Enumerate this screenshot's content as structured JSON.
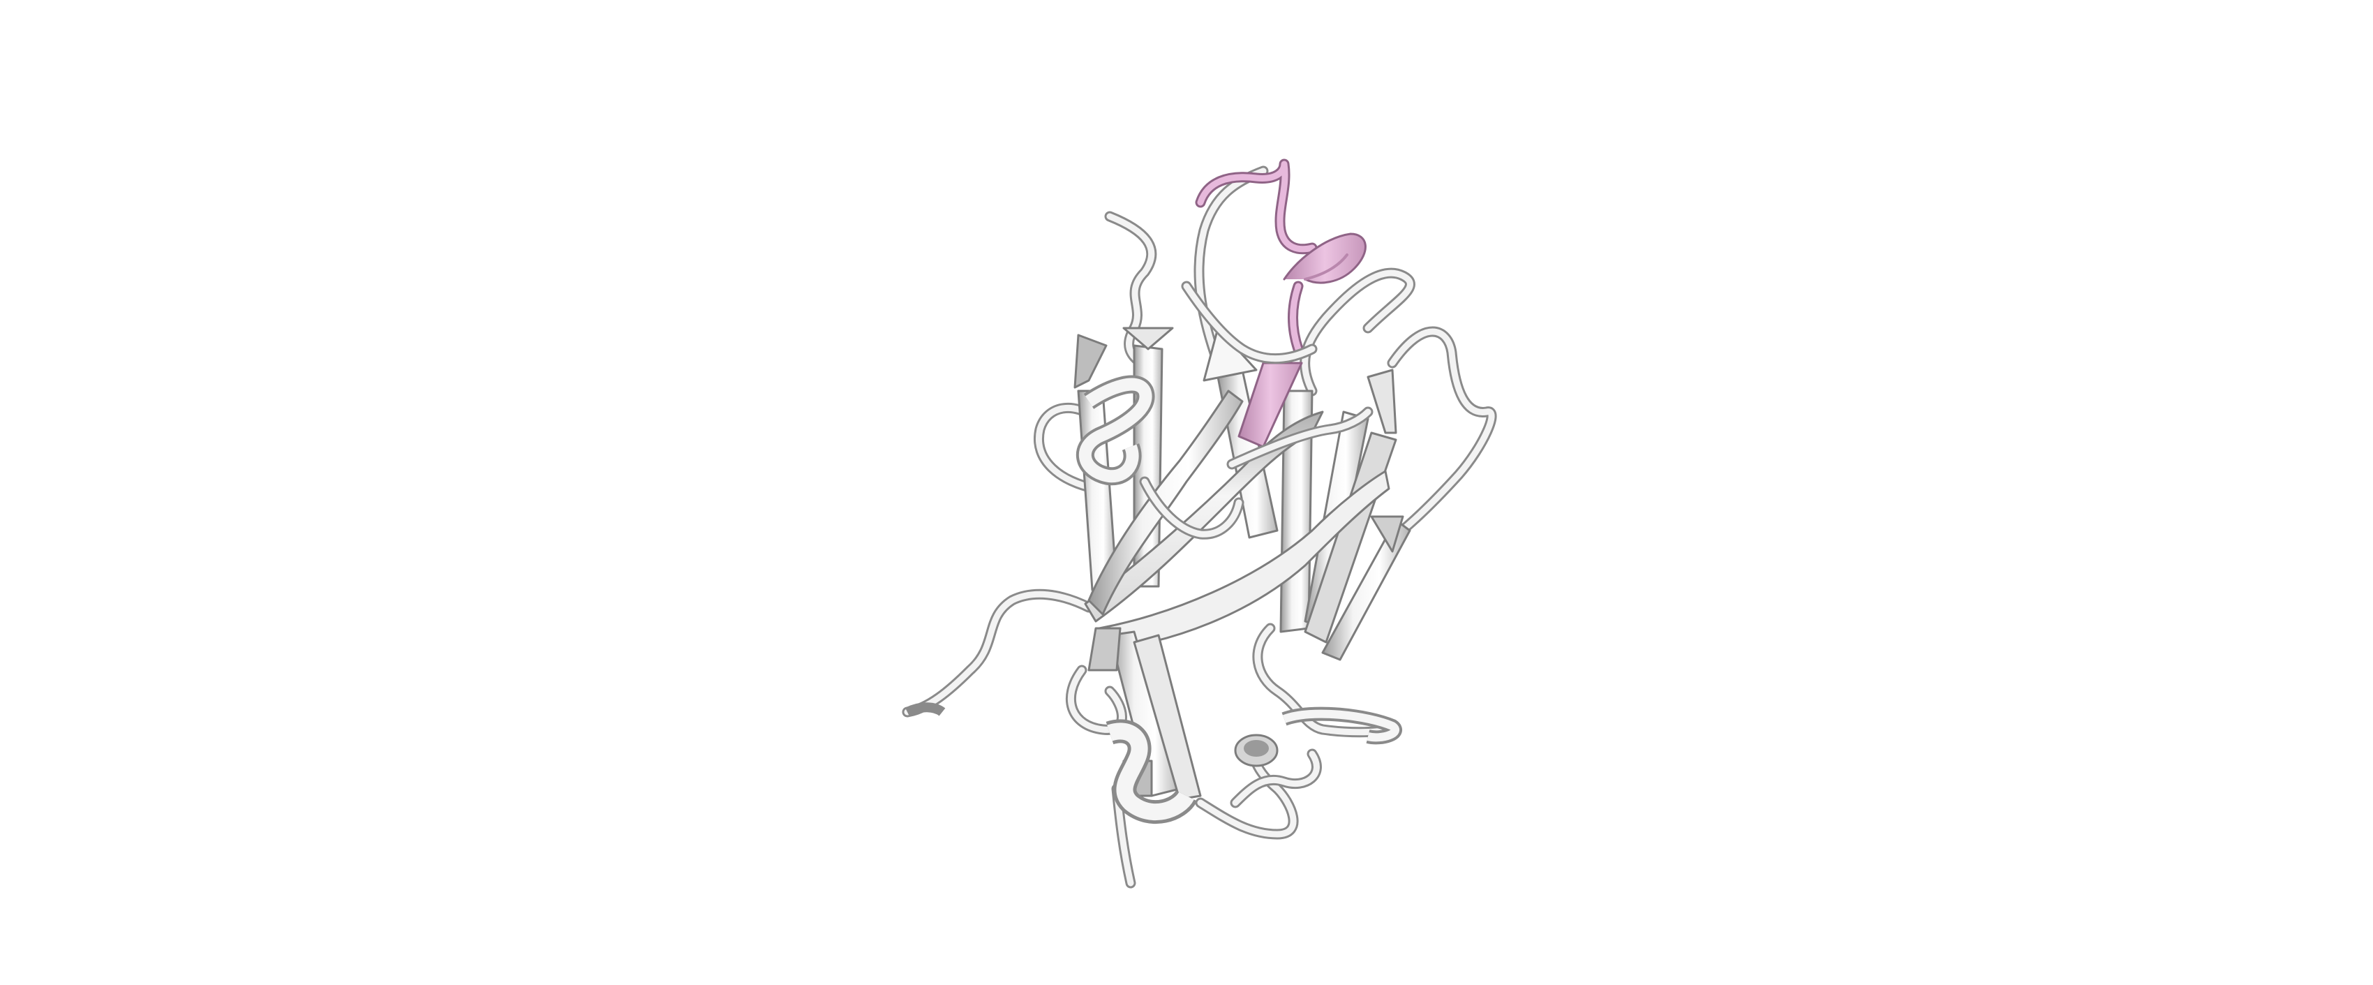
{
  "scene": {
    "background_color": "#ffffff",
    "subject": "protein-ribbon-cartoon",
    "colors": {
      "backbone": "#f2f2f2",
      "backbone_shade": "#a9a9a9",
      "backbone_outline": "#7c7c7c",
      "highlight": "#e7b9dc",
      "highlight_shade": "#b987ad",
      "highlight_outline": "#8f6386"
    },
    "elements": {
      "beta_strands": 14,
      "helical_turns": 5,
      "highlighted_segments": 1
    }
  }
}
